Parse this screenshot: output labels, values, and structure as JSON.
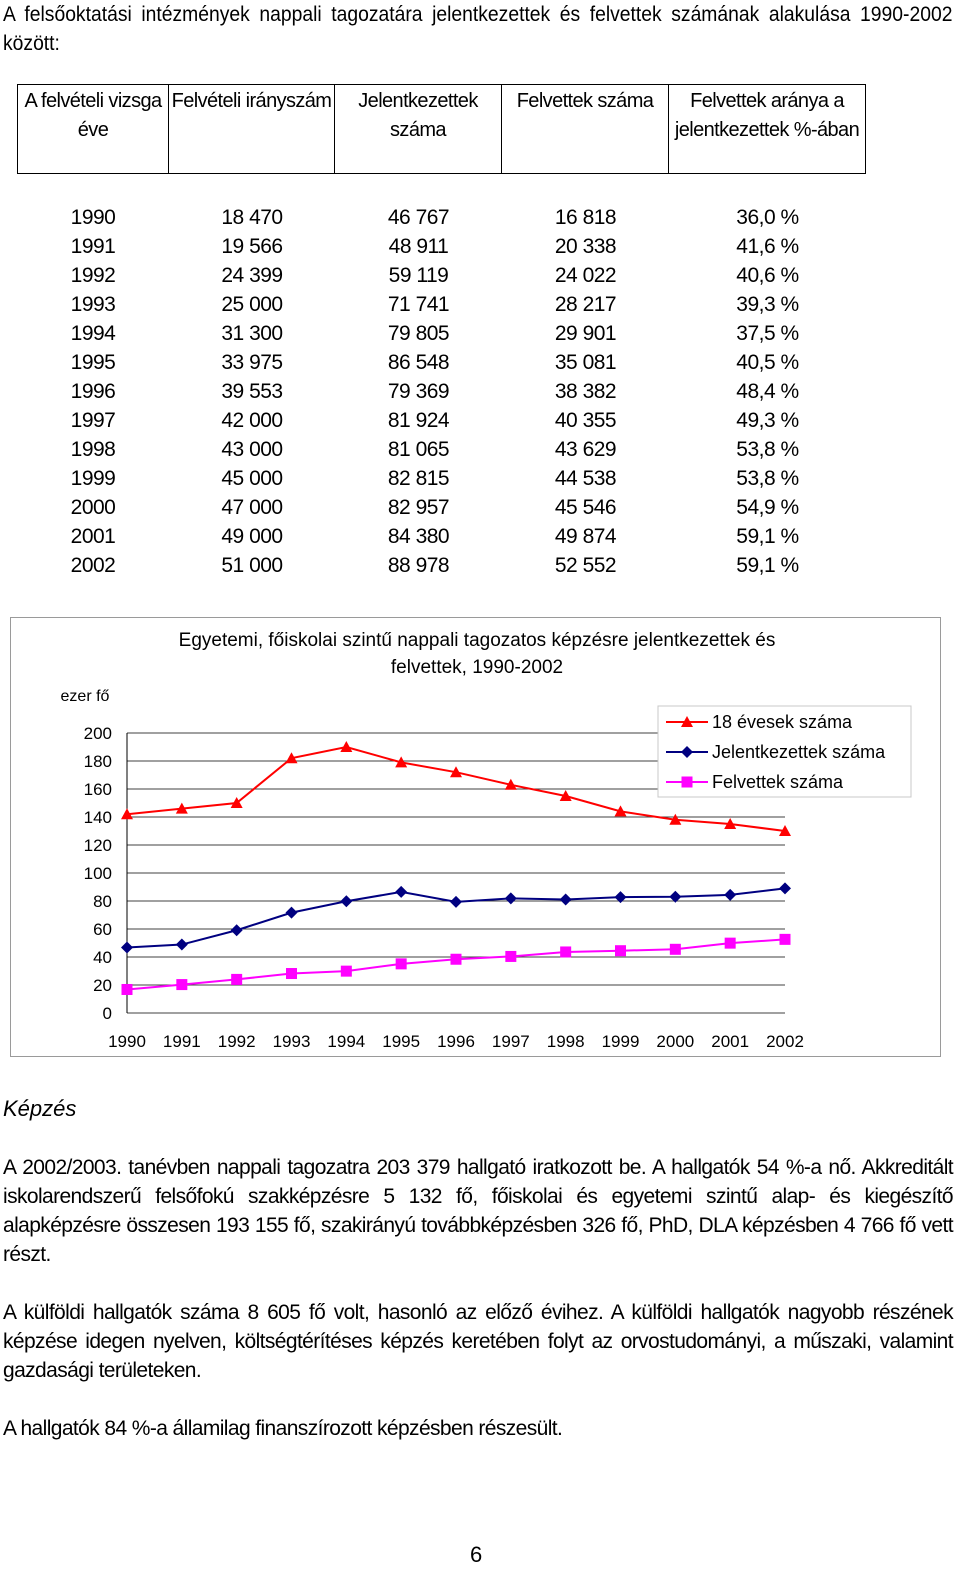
{
  "intro": "A felsőoktatási intézmények nappali tagozatára jelentkezettek és felvettek számának alakulása 1990-2002 között:",
  "table": {
    "headers": [
      "A felvételi vizsga éve",
      "Felvételi irányszám",
      "Jelentkezettek száma",
      "Felvettek száma",
      "Felvettek aránya a jelentkezettek %-ában"
    ],
    "rows": [
      [
        "1990",
        "18 470",
        "46 767",
        "16 818",
        "36,0 %"
      ],
      [
        "1991",
        "19 566",
        "48 911",
        "20 338",
        "41,6 %"
      ],
      [
        "1992",
        "24 399",
        "59 119",
        "24 022",
        "40,6 %"
      ],
      [
        "1993",
        "25 000",
        "71 741",
        "28 217",
        "39,3 %"
      ],
      [
        "1994",
        "31 300",
        "79 805",
        "29 901",
        "37,5 %"
      ],
      [
        "1995",
        "33 975",
        "86 548",
        "35 081",
        "40,5 %"
      ],
      [
        "1996",
        "39 553",
        "79 369",
        "38 382",
        "48,4 %"
      ],
      [
        "1997",
        "42 000",
        "81 924",
        "40 355",
        "49,3 %"
      ],
      [
        "1998",
        "43 000",
        "81 065",
        "43 629",
        "53,8 %"
      ],
      [
        "1999",
        "45 000",
        "82 815",
        "44 538",
        "53,8 %"
      ],
      [
        "2000",
        "47 000",
        "82 957",
        "45 546",
        "54,9 %"
      ],
      [
        "2001",
        "49 000",
        "84 380",
        "49 874",
        "59,1 %"
      ],
      [
        "2002",
        "51 000",
        "88 978",
        "52 552",
        "59,1 %"
      ]
    ]
  },
  "chart_data": {
    "type": "line",
    "title_line1": "Egyetemi, főiskolai szintű  nappali tagozatos képzésre jelentkezettek és",
    "title_line2": "felvettek, 1990-2002",
    "ylabel": "ezer fő",
    "ylim": [
      0,
      200
    ],
    "yticks": [
      "200",
      "180",
      "160",
      "140",
      "120",
      "100",
      "80",
      "60",
      "40",
      "20",
      "0"
    ],
    "categories": [
      "1990",
      "1991",
      "1992",
      "1993",
      "1994",
      "1995",
      "1996",
      "1997",
      "1998",
      "1999",
      "2000",
      "2001",
      "2002"
    ],
    "grid": true,
    "legend_position": "top-right",
    "series": [
      {
        "name": "18 évesek száma",
        "color": "#ff0000",
        "marker": "triangle",
        "values": [
          142,
          146,
          150,
          182,
          190,
          179,
          172,
          163,
          155,
          144,
          138,
          135,
          130
        ]
      },
      {
        "name": "Jelentkezettek száma",
        "color": "#000080",
        "marker": "diamond",
        "values": [
          46.8,
          48.9,
          59.1,
          71.7,
          79.8,
          86.5,
          79.4,
          81.9,
          81.1,
          82.8,
          83.0,
          84.4,
          89.0
        ]
      },
      {
        "name": "Felvettek száma",
        "color": "#ff00ff",
        "marker": "square",
        "values": [
          16.8,
          20.3,
          24.0,
          28.2,
          29.9,
          35.1,
          38.4,
          40.4,
          43.6,
          44.5,
          45.5,
          49.9,
          52.6
        ]
      }
    ]
  },
  "section_title": "Képzés",
  "paragraphs": [
    "A 2002/2003. tanévben nappali tagozatra 203 379 hallgató iratkozott be. A hallgatók 54 %-a nő. Akkreditált iskolarendszerű felsőfokú szakképzésre 5 132 fő, főiskolai és egyetemi szintű alap- és kiegészítő alapképzésre összesen 193 155 fő, szakirányú továbbképzésben 326 fő, PhD, DLA képzésben 4 766 fő vett részt.",
    "A külföldi hallgatók száma 8 605 fő volt, hasonló az előző évihez. A külföldi hallgatók nagyobb részének képzése idegen nyelven, költségtérítéses képzés keretében folyt az orvostudományi, a műszaki, valamint gazdasági területeken.",
    "A hallgatók 84 %-a államilag finanszírozott képzésben részesült."
  ],
  "page_number": "6"
}
